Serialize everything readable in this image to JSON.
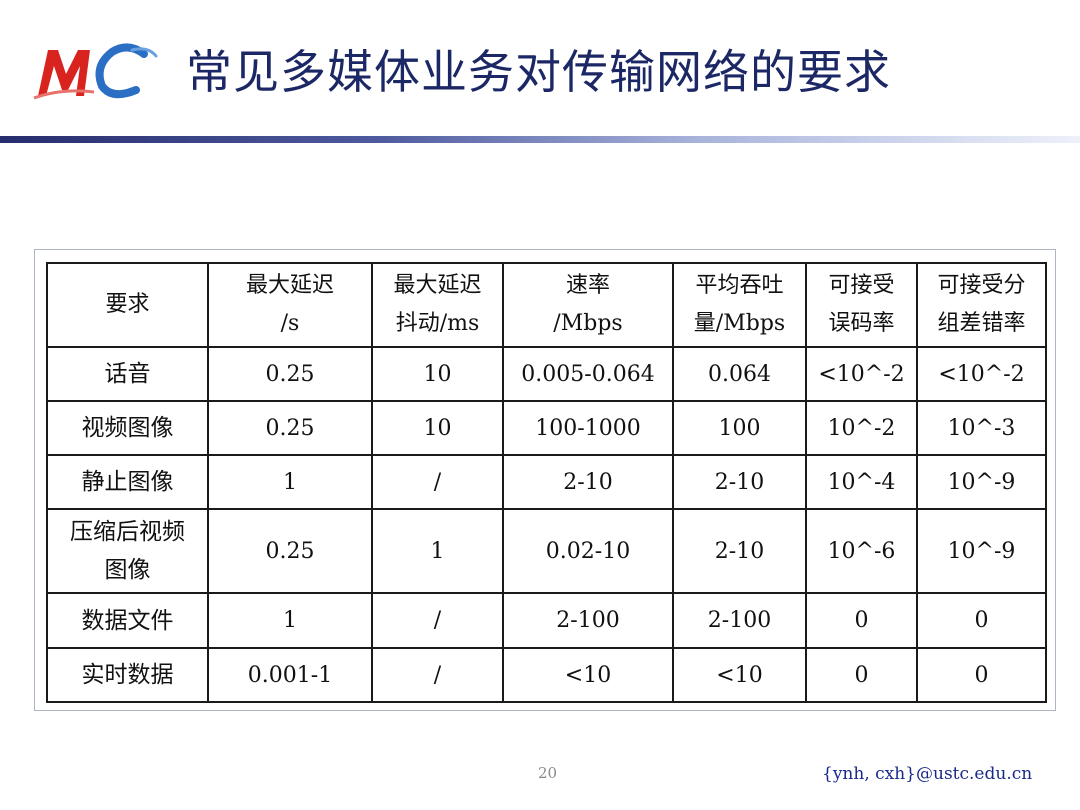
{
  "slide": {
    "logo_text": "MC",
    "title": "常见多媒体业务对传输网络的要求",
    "page_number": "20",
    "footer_email": "{ynh, cxh}@ustc.edu.cn"
  },
  "table": {
    "headers": [
      [
        "要求"
      ],
      [
        "最大延迟",
        "/s"
      ],
      [
        "最大延迟",
        "抖动/ms"
      ],
      [
        "速率",
        "/Mbps"
      ],
      [
        "平均吞吐",
        "量/Mbps"
      ],
      [
        "可接受",
        "误码率"
      ],
      [
        "可接受分",
        "组差错率"
      ]
    ],
    "rows": [
      {
        "label": [
          "话音"
        ],
        "cells": [
          "0.25",
          "10",
          "0.005-0.064",
          "0.064",
          "<10^-2",
          "<10^-2"
        ]
      },
      {
        "label": [
          "视频图像"
        ],
        "cells": [
          "0.25",
          "10",
          "100-1000",
          "100",
          "10^-2",
          "10^-3"
        ]
      },
      {
        "label": [
          "静止图像"
        ],
        "cells": [
          "1",
          "/",
          "2-10",
          "2-10",
          "10^-4",
          "10^-9"
        ]
      },
      {
        "label": [
          "压缩后视频",
          "图像"
        ],
        "cells": [
          "0.25",
          "1",
          "0.02-10",
          "2-10",
          "10^-6",
          "10^-9"
        ]
      },
      {
        "label": [
          "数据文件"
        ],
        "cells": [
          "1",
          "/",
          "2-100",
          "2-100",
          "0",
          "0"
        ]
      },
      {
        "label": [
          "实时数据"
        ],
        "cells": [
          "0.001-1",
          "/",
          "<10",
          "<10",
          "0",
          "0"
        ]
      }
    ]
  },
  "colors": {
    "title": "#1c2866",
    "logo_red": "#d8231f",
    "logo_blue": "#2a6fc4"
  }
}
